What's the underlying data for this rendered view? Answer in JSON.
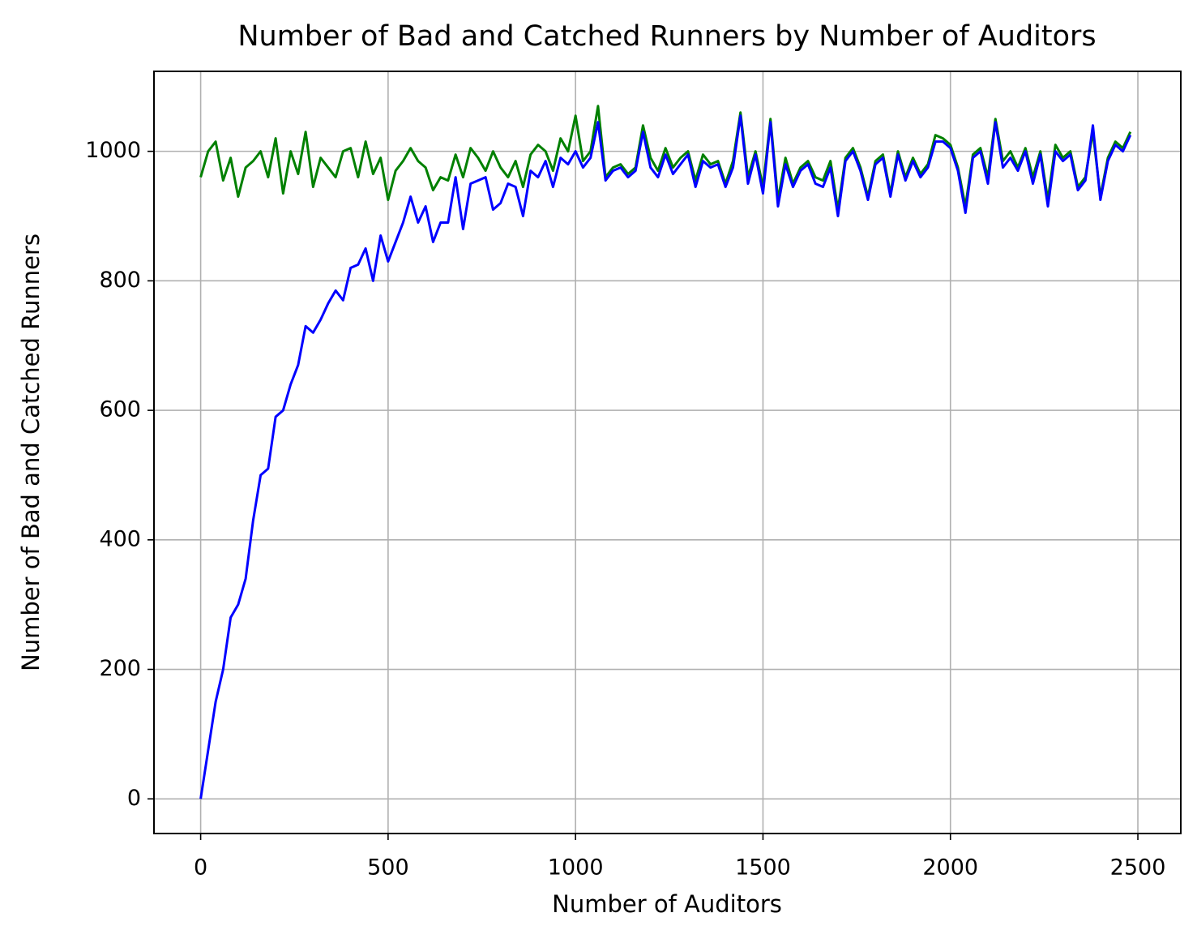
{
  "chart_data": {
    "type": "line",
    "title": "Number of Bad and Catched Runners by Number of Auditors",
    "xlabel": "Number of Auditors",
    "ylabel": "Number of Bad and Catched Runners",
    "x": [
      0,
      20,
      40,
      60,
      80,
      100,
      120,
      140,
      160,
      180,
      200,
      220,
      240,
      260,
      280,
      300,
      320,
      340,
      360,
      380,
      400,
      420,
      440,
      460,
      480,
      500,
      520,
      540,
      560,
      580,
      600,
      620,
      640,
      660,
      680,
      700,
      720,
      740,
      760,
      780,
      800,
      820,
      840,
      860,
      880,
      900,
      920,
      940,
      960,
      980,
      1000,
      1020,
      1040,
      1060,
      1080,
      1100,
      1120,
      1140,
      1160,
      1180,
      1200,
      1220,
      1240,
      1260,
      1280,
      1300,
      1320,
      1340,
      1360,
      1380,
      1400,
      1420,
      1440,
      1460,
      1480,
      1500,
      1520,
      1540,
      1560,
      1580,
      1600,
      1620,
      1640,
      1660,
      1680,
      1700,
      1720,
      1740,
      1760,
      1780,
      1800,
      1820,
      1840,
      1860,
      1880,
      1900,
      1920,
      1940,
      1960,
      1980,
      2000,
      2020,
      2040,
      2060,
      2080,
      2100,
      2120,
      2140,
      2160,
      2180,
      2200,
      2220,
      2240,
      2260,
      2280,
      2300,
      2320,
      2340,
      2360,
      2380,
      2400,
      2420,
      2440,
      2460,
      2480
    ],
    "series": [
      {
        "color": "#008000",
        "values": [
          960,
          1000,
          1015,
          955,
          990,
          930,
          975,
          985,
          1000,
          960,
          1020,
          935,
          1000,
          965,
          1030,
          945,
          990,
          975,
          960,
          1000,
          1005,
          960,
          1015,
          965,
          990,
          925,
          970,
          985,
          1005,
          985,
          975,
          940,
          960,
          955,
          995,
          960,
          1005,
          990,
          970,
          1000,
          975,
          960,
          985,
          945,
          995,
          1010,
          1000,
          970,
          1020,
          1000,
          1055,
          985,
          1000,
          1070,
          960,
          975,
          980,
          965,
          975,
          1040,
          990,
          970,
          1005,
          975,
          990,
          1000,
          955,
          995,
          980,
          985,
          950,
          985,
          1060,
          960,
          1000,
          945,
          1050,
          925,
          990,
          950,
          975,
          985,
          960,
          955,
          985,
          910,
          990,
          1005,
          975,
          930,
          985,
          995,
          935,
          1000,
          960,
          990,
          965,
          980,
          1025,
          1020,
          1010,
          975,
          915,
          995,
          1005,
          960,
          1050,
          985,
          1000,
          975,
          1005,
          960,
          1000,
          925,
          1010,
          990,
          1000,
          945,
          960,
          1030,
          930,
          990,
          1015,
          1005,
          1030
        ]
      },
      {
        "color": "#0000ff",
        "values": [
          0,
          75,
          150,
          200,
          280,
          300,
          340,
          430,
          500,
          510,
          590,
          600,
          640,
          670,
          730,
          720,
          740,
          765,
          785,
          770,
          820,
          825,
          850,
          800,
          870,
          830,
          860,
          890,
          930,
          890,
          915,
          860,
          890,
          890,
          960,
          880,
          950,
          955,
          960,
          910,
          920,
          950,
          945,
          900,
          970,
          960,
          985,
          945,
          990,
          980,
          1000,
          975,
          990,
          1045,
          955,
          970,
          975,
          960,
          970,
          1030,
          975,
          960,
          995,
          965,
          980,
          995,
          945,
          985,
          975,
          980,
          945,
          975,
          1055,
          950,
          995,
          935,
          1045,
          915,
          980,
          945,
          970,
          980,
          950,
          945,
          975,
          900,
          985,
          1000,
          970,
          925,
          980,
          990,
          930,
          995,
          955,
          985,
          960,
          975,
          1015,
          1015,
          1005,
          970,
          905,
          990,
          1000,
          950,
          1045,
          975,
          990,
          970,
          1000,
          950,
          995,
          915,
          1000,
          985,
          995,
          940,
          955,
          1040,
          925,
          985,
          1010,
          1000,
          1025
        ]
      }
    ],
    "xlim": [
      -124.5,
      2614.5
    ],
    "ylim": [
      -53.5,
      1123.5
    ],
    "xticks": [
      0,
      500,
      1000,
      1500,
      2000,
      2500
    ],
    "yticks": [
      0,
      200,
      400,
      600,
      800,
      1000
    ],
    "grid": true
  }
}
